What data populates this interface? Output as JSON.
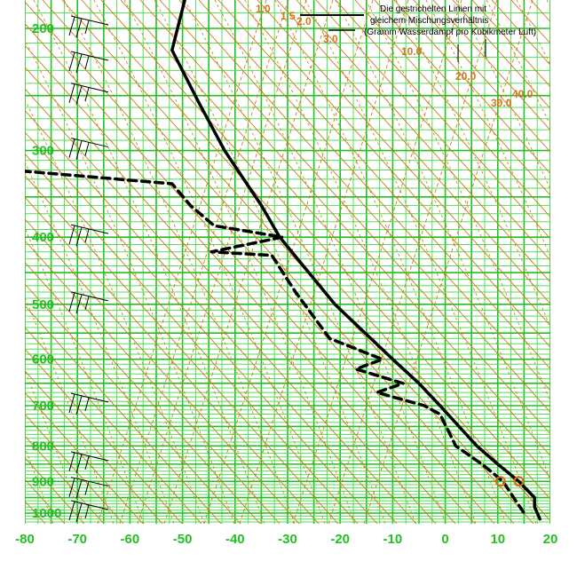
{
  "chart_data": {
    "type": "line",
    "title": "",
    "xlabel": "",
    "ylabel": "",
    "x_axis": {
      "ticks": [
        -80,
        -70,
        -60,
        -50,
        -40,
        -30,
        -20,
        -10,
        0,
        10,
        20
      ],
      "tick_labels": [
        "-80",
        "-70",
        "-60",
        "-50",
        "-40",
        "-30",
        "-20",
        "-10",
        "0",
        "10",
        "20"
      ],
      "range": [
        -80,
        20
      ]
    },
    "y_axis": {
      "scale": "log",
      "ticks": [
        200,
        300,
        400,
        500,
        600,
        700,
        800,
        900,
        1000
      ],
      "tick_labels": [
        "200",
        "300",
        "400",
        "500",
        "600",
        "700",
        "800",
        "900",
        "1000"
      ],
      "range": [
        1050,
        175
      ]
    },
    "grid": true,
    "legend": {
      "placement": "top-right",
      "lines": [
        "Die gestrichelten Linien mit",
        "gleichem Mischungsverhältnis",
        "(Gramm Wasserdampf pro Kubikmeter Luft)"
      ]
    },
    "mixing_ratio_labels": [
      "1.0",
      "1.5",
      "2.0",
      "3.0",
      "10.0",
      "20.0",
      "30.0",
      "40.0"
    ],
    "series": [
      {
        "style": "solid",
        "color": "#000000",
        "points": [
          {
            "p": 175,
            "t": -49
          },
          {
            "p": 215,
            "t": -52
          },
          {
            "p": 255,
            "t": -47
          },
          {
            "p": 300,
            "t": -42
          },
          {
            "p": 360,
            "t": -35
          },
          {
            "p": 400,
            "t": -31.5
          },
          {
            "p": 500,
            "t": -21
          },
          {
            "p": 600,
            "t": -10
          },
          {
            "p": 650,
            "t": -5
          },
          {
            "p": 700,
            "t": -1
          },
          {
            "p": 800,
            "t": 6
          },
          {
            "p": 850,
            "t": 10
          },
          {
            "p": 900,
            "t": 14
          },
          {
            "p": 950,
            "t": 17
          },
          {
            "p": 980,
            "t": 17
          },
          {
            "p": 1020,
            "t": 18
          }
        ]
      },
      {
        "style": "dashed",
        "color": "#000000",
        "points": [
          {
            "p": 320,
            "t": -83
          },
          {
            "p": 335,
            "t": -52
          },
          {
            "p": 360,
            "t": -48.5
          },
          {
            "p": 385,
            "t": -44
          },
          {
            "p": 400,
            "t": -31
          },
          {
            "p": 420,
            "t": -44.5
          },
          {
            "p": 425,
            "t": -33
          },
          {
            "p": 480,
            "t": -28.5
          },
          {
            "p": 560,
            "t": -22
          },
          {
            "p": 600,
            "t": -12
          },
          {
            "p": 620,
            "t": -17
          },
          {
            "p": 650,
            "t": -8
          },
          {
            "p": 670,
            "t": -13
          },
          {
            "p": 700,
            "t": -4
          },
          {
            "p": 720,
            "t": -1
          },
          {
            "p": 800,
            "t": 2
          },
          {
            "p": 850,
            "t": 7
          },
          {
            "p": 900,
            "t": 11
          },
          {
            "p": 950,
            "t": 13
          },
          {
            "p": 1000,
            "t": 15
          }
        ]
      }
    ],
    "markers": [
      {
        "label": "dewpoint-marker",
        "t": 10.5,
        "p": 900
      },
      {
        "label": "temperature-marker",
        "t": 14,
        "p": 900
      }
    ],
    "wind_barbs": [
      {
        "p": 200
      },
      {
        "p": 225
      },
      {
        "p": 250
      },
      {
        "p": 300
      },
      {
        "p": 400
      },
      {
        "p": 500
      },
      {
        "p": 700
      },
      {
        "p": 850
      },
      {
        "p": 925
      },
      {
        "p": 1000
      }
    ]
  },
  "colors": {
    "grid_green": "#22c022",
    "grid_green_light": "#55dd55",
    "isotherm_orange": "#c87a1a",
    "mixing_ratio_orange": "#d2781e",
    "axis_label_green": "#22c022",
    "mr_label_orange": "#d2781e",
    "profile_black": "#000000",
    "marker_orange": "#e06a12"
  }
}
